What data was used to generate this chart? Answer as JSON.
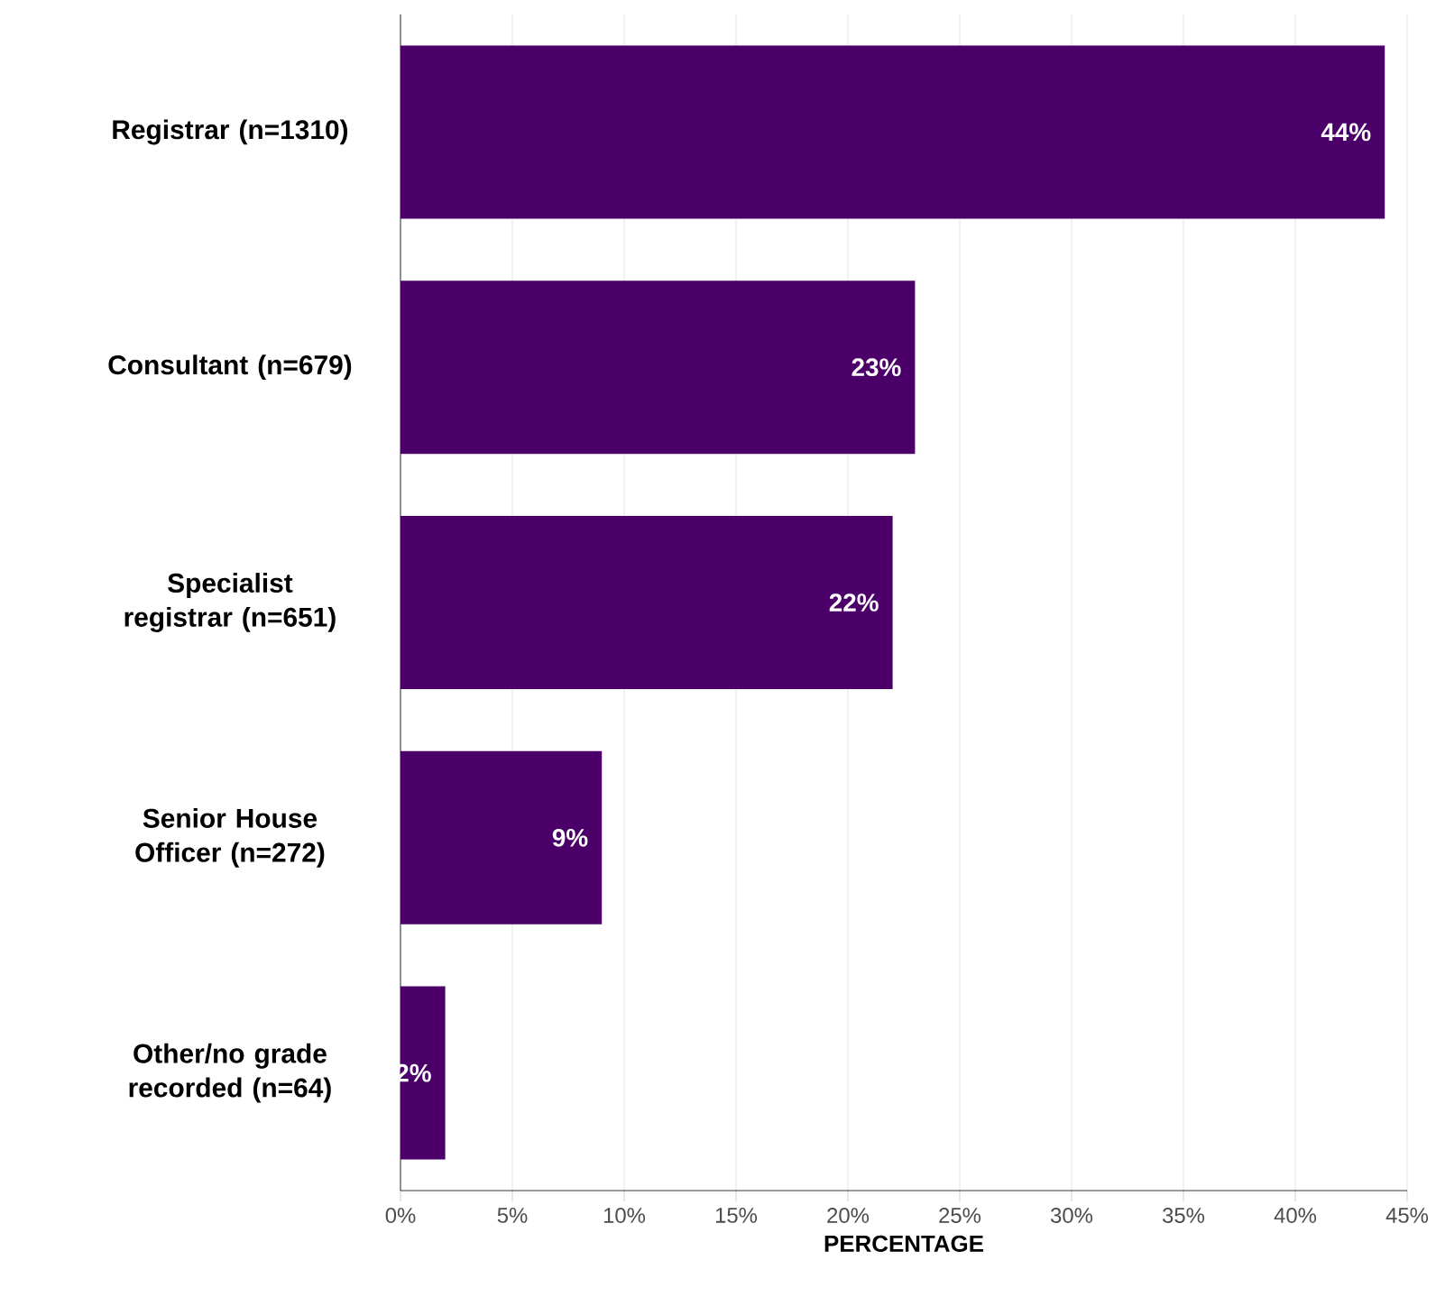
{
  "chart_data": {
    "type": "bar",
    "orientation": "horizontal",
    "xlabel": "PERCENTAGE",
    "categories": [
      "Registrar (n=1310)",
      "Consultant (n=679)",
      "Specialist registrar (n=651)",
      "Senior House Officer (n=272)",
      "Other/no grade recorded (n=64)"
    ],
    "values": [
      44,
      23,
      22,
      9,
      2
    ],
    "value_labels": [
      "44%",
      "23%",
      "22%",
      "9%",
      "2%"
    ],
    "color": "#4b0069",
    "xlim": [
      0,
      45
    ],
    "xticks": [
      {
        "value": 0,
        "label": "0%"
      },
      {
        "value": 5,
        "label": "5%"
      },
      {
        "value": 10,
        "label": "10%"
      },
      {
        "value": 15,
        "label": "15%"
      },
      {
        "value": 20,
        "label": "20%"
      },
      {
        "value": 25,
        "label": "25%"
      },
      {
        "value": 30,
        "label": "30%"
      },
      {
        "value": 35,
        "label": "35%"
      },
      {
        "value": 40,
        "label": "40%"
      },
      {
        "value": 45,
        "label": "45%"
      }
    ],
    "grid": "x"
  }
}
